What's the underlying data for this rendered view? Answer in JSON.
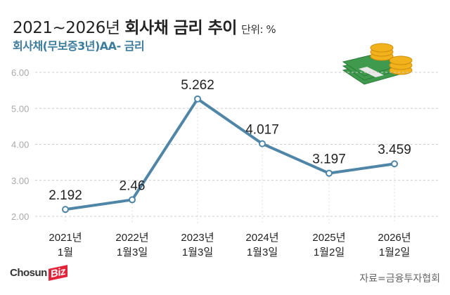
{
  "header": {
    "title_light": "2021~2026년",
    "title_bold": "회사채 금리 추이",
    "unit": "단위: %",
    "subtitle": "회사채(무보증3년)AA- 금리"
  },
  "footer": {
    "logo": "Chosun",
    "logo_accent": "Biz",
    "source": "자료=금융투자협회"
  },
  "colors": {
    "line": "#4f86a8",
    "subtitle": "#3e7c9c",
    "grid": "#cccccc"
  },
  "chart_data": {
    "type": "line",
    "categories": [
      [
        "2021년",
        "1월"
      ],
      [
        "2022년",
        "1월3일"
      ],
      [
        "2023년",
        "1월3일"
      ],
      [
        "2024년",
        "1월3일"
      ],
      [
        "2025년",
        "1월2일"
      ],
      [
        "2026년",
        "1월2일"
      ]
    ],
    "values": [
      2.192,
      2.46,
      5.262,
      4.017,
      3.197,
      3.459
    ],
    "labels": [
      "2.192",
      "2.46",
      "5.262",
      "4.017",
      "3.197",
      "3.459"
    ],
    "yticks": [
      "2.00",
      "3.00",
      "4.00",
      "5.00",
      "6.00"
    ],
    "ylim": [
      2,
      6
    ],
    "grid": true
  }
}
